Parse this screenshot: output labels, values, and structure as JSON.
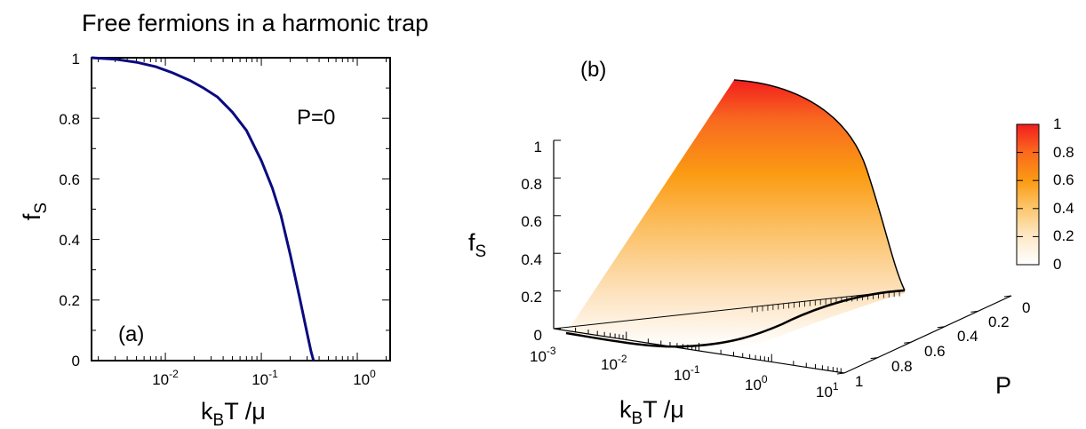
{
  "title": "Free fermions in a harmonic trap",
  "chart_data": [
    {
      "type": "line",
      "panel_label": "(a)",
      "annotation": "P=0",
      "xlabel_base": "k",
      "xlabel_sub": "B",
      "xlabel_rest": "T /μ",
      "ylabel_base": "f",
      "ylabel_sub": "S",
      "xscale": "log",
      "xlim": [
        0.0017,
        2.2
      ],
      "ylim": [
        0,
        1
      ],
      "x_tick_labels": [
        "10",
        "10",
        "10"
      ],
      "x_tick_exponents": [
        "-2",
        "-1",
        "0"
      ],
      "y_tick_labels": [
        "0",
        "0.2",
        "0.4",
        "0.6",
        "0.8",
        "1"
      ],
      "series": [
        {
          "color": "#0a0a80",
          "x": [
            0.0017,
            0.003,
            0.005,
            0.008,
            0.012,
            0.018,
            0.025,
            0.035,
            0.05,
            0.07,
            0.1,
            0.13,
            0.16,
            0.2,
            0.25,
            0.3,
            0.33,
            0.35
          ],
          "y": [
            1.0,
            0.995,
            0.985,
            0.97,
            0.95,
            0.925,
            0.9,
            0.87,
            0.82,
            0.76,
            0.66,
            0.57,
            0.48,
            0.35,
            0.21,
            0.09,
            0.03,
            0.0
          ]
        }
      ]
    },
    {
      "type": "surface",
      "panel_label": "(b)",
      "xlabel_base": "k",
      "xlabel_sub": "B",
      "xlabel_rest": "T /μ",
      "ylabel": "P",
      "zlabel_base": "f",
      "zlabel_sub": "S",
      "x_tick_labels": [
        "10",
        "10",
        "10",
        "10"
      ],
      "x_tick_exponents": [
        "-3",
        "-2",
        "-1",
        "0"
      ],
      "x_end_label_base": "10",
      "x_end_label_exp": "1",
      "p_tick_labels": [
        "1",
        "0.8",
        "0.6",
        "0.4",
        "0.2",
        "0"
      ],
      "z_tick_labels": [
        "0",
        "0.2",
        "0.4",
        "0.6",
        "0.8",
        "1"
      ],
      "colorbar_tick_labels": [
        "0",
        "0.2",
        "0.4",
        "0.6",
        "0.8",
        "1"
      ],
      "colorbar_colors": [
        "#ffffff",
        "#fde9c8",
        "#fdc76e",
        "#fb9a12",
        "#fb6a1d",
        "#f21e1e"
      ],
      "zlim": [
        0,
        1
      ]
    }
  ]
}
